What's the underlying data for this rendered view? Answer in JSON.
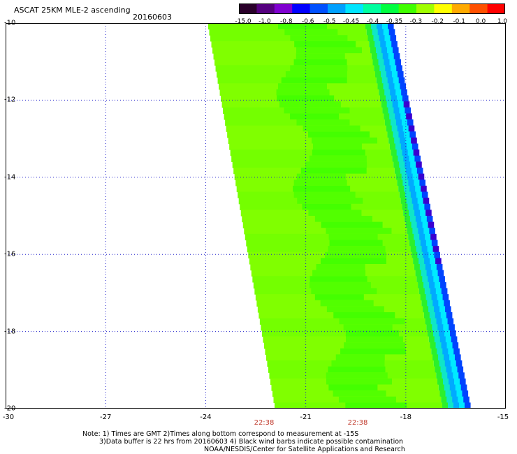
{
  "header": {
    "title": "ASCAT 25KM MLE-2 ascending",
    "date": "20160603"
  },
  "colorbar": {
    "labels": [
      "-15.0",
      "-1.0",
      "-0.8",
      "-0.6",
      "-0.5",
      "-0.45",
      "-0.4",
      "-0.35",
      "-0.3",
      "-0.2",
      "-0.1",
      "0.0",
      "1.0"
    ],
    "colors": [
      "#2a002a",
      "#55007f",
      "#7f00d0",
      "#0000ff",
      "#0050ff",
      "#00a0ff",
      "#00e5ff",
      "#00ffa0",
      "#00ff40",
      "#40ff00",
      "#a0ff00",
      "#ffff00",
      "#ffaa00",
      "#ff5000",
      "#ff0000"
    ]
  },
  "axes": {
    "y_labels": [
      "-10",
      "-12",
      "-14",
      "-16",
      "-18",
      "-20"
    ],
    "x_labels": [
      "-30",
      "-27",
      "-24",
      "-21",
      "-18",
      "-15"
    ]
  },
  "times": [
    "22:38",
    "22:38"
  ],
  "notes": {
    "line1": "Note: 1) Times are GMT 2)Times along bottom correspond to measurement at -15S",
    "line2": "3)Data buffer is 22 hrs from 20160603 4) Black wind barbs indicate possible contamination",
    "line3": "NOAA/NESDIS/Center for Satellite Applications and Research"
  }
}
